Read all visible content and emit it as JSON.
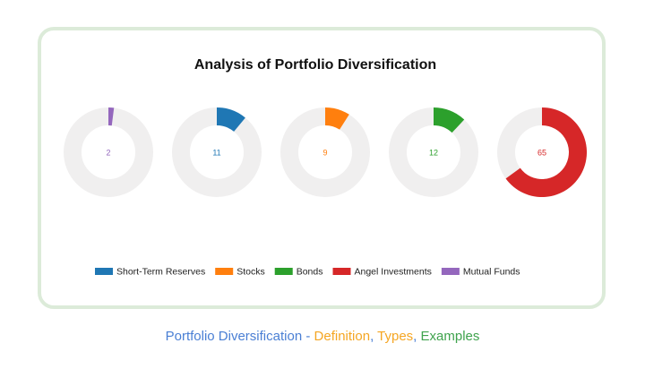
{
  "chart_data": {
    "type": "donut",
    "title": "Analysis of Portfolio Diversification",
    "values": [
      2,
      11,
      9,
      12,
      65
    ],
    "colors": [
      "#9467bd",
      "#1f77b4",
      "#ff7f0e",
      "#2ca02c",
      "#d62728"
    ],
    "ylim": [
      0,
      100
    ],
    "legend": [
      {
        "name": "Short-Term Reserves",
        "color": "#1f77b4"
      },
      {
        "name": "Stocks",
        "color": "#ff7f0e"
      },
      {
        "name": "Bonds",
        "color": "#2ca02c"
      },
      {
        "name": "Angel Investments",
        "color": "#d62728"
      },
      {
        "name": "Mutual Funds",
        "color": "#9467bd"
      }
    ],
    "legend_position": "bottom"
  },
  "caption": [
    {
      "text": "Portfolio Diversification",
      "color": "#4a7fd4"
    },
    {
      "text": " - ",
      "color": "#4a7fd4"
    },
    {
      "text": "Definition",
      "color": "#f5a623"
    },
    {
      "text": ", ",
      "color": "#4a7fd4"
    },
    {
      "text": "Types",
      "color": "#f5a623"
    },
    {
      "text": ", ",
      "color": "#4a7fd4"
    },
    {
      "text": "Examples",
      "color": "#3fa34d"
    }
  ]
}
